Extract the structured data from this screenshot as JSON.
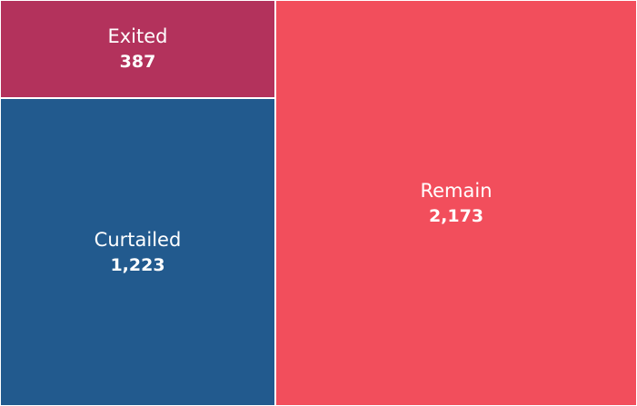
{
  "chart_data": {
    "type": "treemap",
    "categories": [
      "Exited",
      "Curtailed",
      "Remain"
    ],
    "values": [
      387,
      1223,
      2173
    ],
    "value_labels": [
      "387",
      "1,223",
      "2,173"
    ],
    "colors": [
      "#b3325c",
      "#225a8e",
      "#f24e5c"
    ],
    "title": "",
    "xlabel": "",
    "ylabel": ""
  }
}
